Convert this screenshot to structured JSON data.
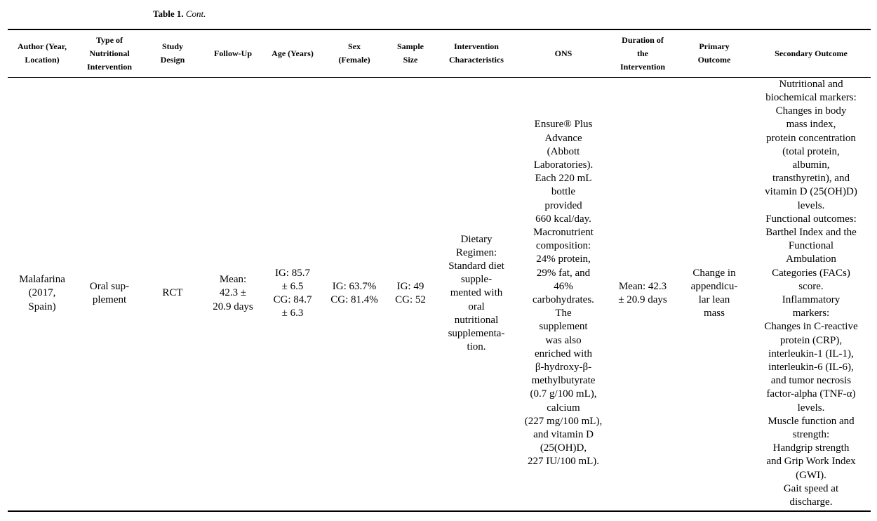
{
  "caption": {
    "label": "Table 1.",
    "cont": "Cont."
  },
  "headers": [
    "Author (Year,\nLocation)",
    "Type of\nNutritional\nIntervention",
    "Study\nDesign",
    "Follow-Up",
    "Age (Years)",
    "Sex\n(Female)",
    "Sample\nSize",
    "Intervention\nCharacteristics",
    "ONS",
    "Duration of\nthe\nIntervention",
    "Primary\nOutcome",
    "Secondary Outcome"
  ],
  "row": {
    "author": "Malafarina\n(2017,\nSpain)",
    "type": "Oral sup-\nplement",
    "design": "RCT",
    "followup": "Mean:\n42.3 ±\n20.9 days",
    "age": "IG: 85.7\n± 6.5\nCG: 84.7\n± 6.3",
    "sex": "IG: 63.7%\nCG: 81.4%",
    "sample": "IG: 49\nCG: 52",
    "intervention": "Dietary\nRegimen:\nStandard diet\nsupple-\nmented with\noral\nnutritional\nsupplementa-\ntion.",
    "ons": "Ensure® Plus\nAdvance\n(Abbott\nLaboratories).\nEach 220 mL\nbottle\nprovided\n660 kcal/day.\nMacronutrient\ncomposition:\n24% protein,\n29% fat, and\n46%\ncarbohydrates.\nThe\nsupplement\nwas also\nenriched with\nβ-hydroxy-β-\nmethylbutyrate\n(0.7 g/100 mL),\ncalcium\n(227 mg/100 mL),\nand vitamin D\n(25(OH)D,\n227 IU/100 mL).",
    "duration": "Mean: 42.3\n± 20.9 days",
    "primary": "Change in\nappendicu-\nlar lean\nmass",
    "secondary": "Nutritional and\nbiochemical markers:\nChanges in body\nmass index,\nprotein concentration\n(total protein,\nalbumin,\ntransthyretin), and\nvitamin D (25(OH)D)\nlevels.\nFunctional outcomes:\nBarthel Index and the\nFunctional\nAmbulation\nCategories (FACs)\nscore.\nInflammatory\nmarkers:\nChanges in C-reactive\nprotein (CRP),\ninterleukin-1 (IL-1),\ninterleukin-6 (IL-6),\nand tumor necrosis\nfactor-alpha (TNF-α)\nlevels.\nMuscle function and\nstrength:\nHandgrip strength\nand Grip Work Index\n(GWI).\nGait speed at\ndischarge."
  }
}
